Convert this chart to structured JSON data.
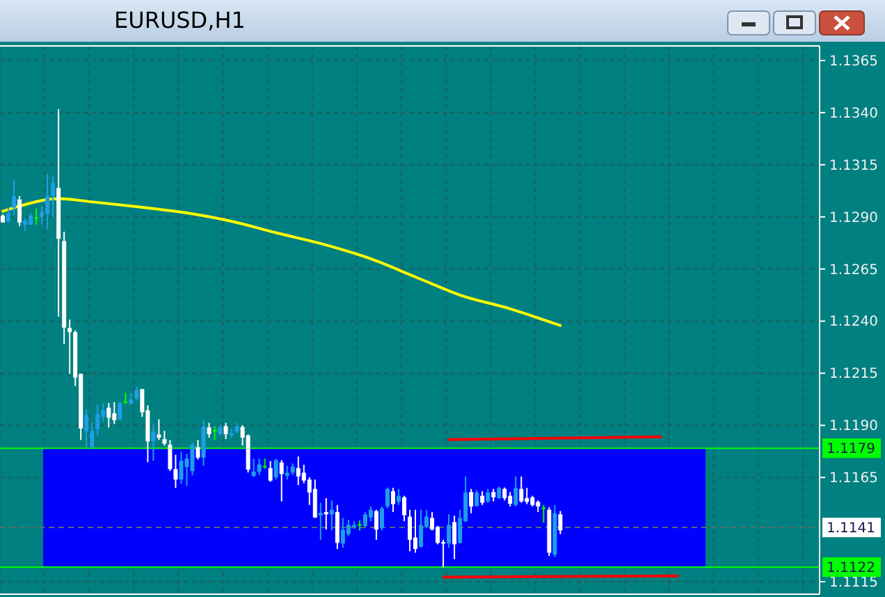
{
  "chart_data": {
    "type": "candlestick",
    "title": "EURUSD,H1",
    "categories": [
      null,
      null,
      null,
      null,
      null,
      null,
      null,
      null,
      null,
      null,
      null,
      null,
      null,
      null,
      null,
      null,
      null,
      null,
      null,
      null,
      null,
      null,
      null,
      null,
      null,
      null,
      null,
      null,
      null,
      null,
      null,
      null,
      null,
      null,
      null,
      null,
      null,
      null,
      null,
      null,
      null,
      null,
      null,
      null,
      null,
      null,
      null,
      null,
      null,
      null,
      null,
      null,
      null,
      null,
      null,
      null,
      null,
      null,
      null,
      null,
      null,
      null,
      null,
      null,
      null,
      null,
      null,
      null,
      null,
      null,
      null,
      null,
      null,
      null,
      null,
      null,
      null,
      null,
      null,
      null,
      null,
      null,
      null,
      null,
      null,
      null,
      null,
      null,
      null,
      null,
      null,
      null,
      null,
      null,
      null,
      null,
      null,
      null,
      null,
      null,
      null,
      null,
      null,
      null,
      null,
      null,
      null,
      null,
      null,
      null,
      null,
      null,
      null,
      null,
      null,
      null,
      null,
      null,
      null,
      null,
      null,
      null,
      null,
      null,
      null,
      null,
      null,
      null,
      null,
      null,
      null,
      null,
      null,
      null,
      null,
      null,
      null,
      null,
      null,
      null,
      null,
      null,
      null,
      null,
      null,
      null,
      null
    ],
    "ohlc": [
      [
        1.12906,
        1.12913,
        1.12873,
        1.12873
      ],
      [
        1.12877,
        1.12944,
        1.12873,
        1.12917
      ],
      [
        1.12944,
        1.13079,
        1.12906,
        1.13
      ],
      [
        1.12984,
        1.13,
        1.12855,
        1.12873
      ],
      [
        1.12862,
        1.12895,
        1.12833,
        1.1288
      ],
      [
        1.12862,
        1.12917,
        1.12862,
        1.12906
      ],
      [
        1.12895,
        1.1294,
        1.12862,
        1.12895
      ],
      [
        1.129,
        1.12951,
        1.12862,
        1.12924
      ],
      [
        1.12913,
        1.13106,
        1.1284,
        1.13
      ],
      [
        1.13,
        1.13095,
        1.12895,
        1.13062
      ],
      [
        1.13039,
        1.13417,
        1.12422,
        1.12795
      ],
      [
        1.12784,
        1.12829,
        1.12291,
        1.12369
      ],
      [
        1.12367,
        1.12407,
        1.12147,
        1.12347
      ],
      [
        1.12347,
        1.12356,
        1.12089,
        1.12129
      ],
      [
        1.12147,
        1.12147,
        1.1183,
        1.11885
      ],
      [
        1.1187,
        1.11974,
        1.11796,
        1.11947
      ],
      [
        1.11796,
        1.11914,
        1.11785,
        1.11874
      ],
      [
        1.11881,
        1.12001,
        1.11852,
        1.11954
      ],
      [
        1.11941,
        1.12007,
        1.11918,
        1.11974
      ],
      [
        1.11985,
        1.12007,
        1.1189,
        1.11936
      ],
      [
        1.11958,
        1.12012,
        1.11907,
        1.11925
      ],
      [
        1.11929,
        1.12012,
        1.11925,
        1.12007
      ],
      [
        1.12012,
        1.12056,
        1.12001,
        1.12012
      ],
      [
        1.12003,
        1.12056,
        1.12001,
        1.12025
      ],
      [
        1.12029,
        1.12085,
        1.12018,
        1.12069
      ],
      [
        1.12074,
        1.12074,
        1.11941,
        1.11963
      ],
      [
        1.11972,
        1.11996,
        1.11723,
        1.11823
      ],
      [
        1.11823,
        1.11907,
        1.1173,
        1.1187
      ],
      [
        1.11856,
        1.11929,
        1.1183,
        1.11841
      ],
      [
        1.11834,
        1.11874,
        1.11803,
        1.11812
      ],
      [
        1.11807,
        1.1183,
        1.11681,
        1.1169
      ],
      [
        1.1169,
        1.11759,
        1.116,
        1.1164
      ],
      [
        1.1164,
        1.11774,
        1.1162,
        1.1173
      ],
      [
        1.117,
        1.11763,
        1.1161,
        1.11741
      ],
      [
        1.1168,
        1.11818,
        1.1166,
        1.11807
      ],
      [
        1.11796,
        1.1183,
        1.11736,
        1.11745
      ],
      [
        1.11745,
        1.11925,
        1.11707,
        1.11896
      ],
      [
        1.1189,
        1.11912,
        1.11841,
        1.11858
      ],
      [
        1.11874,
        1.11896,
        1.1183,
        1.11874
      ],
      [
        1.11858,
        1.11903,
        1.11852,
        1.1189
      ],
      [
        1.11896,
        1.11912,
        1.11834,
        1.11858
      ],
      [
        1.11852,
        1.11885,
        1.11841,
        1.11863
      ],
      [
        1.1187,
        1.11912,
        1.11863,
        1.11896
      ],
      [
        1.11892,
        1.11901,
        1.11803,
        1.11841
      ],
      [
        1.11852,
        1.11856,
        1.11674,
        1.11688
      ],
      [
        1.11658,
        1.1174,
        1.11651,
        1.11678
      ],
      [
        1.11678,
        1.1174,
        1.11662,
        1.11713
      ],
      [
        1.11702,
        1.1174,
        1.11691,
        1.11702
      ],
      [
        1.11695,
        1.11729,
        1.11629,
        1.11635
      ],
      [
        1.11651,
        1.1174,
        1.1164,
        1.11733
      ],
      [
        1.11722,
        1.11733,
        1.11535,
        1.11666
      ],
      [
        1.11658,
        1.11706,
        1.1164,
        1.11673
      ],
      [
        1.11673,
        1.11717,
        1.11662,
        1.11702
      ],
      [
        1.11695,
        1.11751,
        1.11613,
        1.11655
      ],
      [
        1.11673,
        1.11711,
        1.11622,
        1.11635
      ],
      [
        1.1164,
        1.11651,
        1.11518,
        1.11578
      ],
      [
        1.11595,
        1.1164,
        1.11456,
        1.11458
      ],
      [
        1.11467,
        1.11529,
        1.11351,
        1.1148
      ],
      [
        1.11484,
        1.11551,
        1.114,
        1.11473
      ],
      [
        1.11473,
        1.1154,
        1.11396,
        1.11495
      ],
      [
        1.11484,
        1.11518,
        1.11307,
        1.11336
      ],
      [
        1.11333,
        1.11456,
        1.11313,
        1.114
      ],
      [
        1.11378,
        1.11447,
        1.11369,
        1.11422
      ],
      [
        1.11413,
        1.1144,
        1.11404,
        1.11422
      ],
      [
        1.11422,
        1.11444,
        1.11396,
        1.11422
      ],
      [
        1.11418,
        1.11484,
        1.11413,
        1.11473
      ],
      [
        1.11458,
        1.11511,
        1.1144,
        1.11495
      ],
      [
        1.11489,
        1.11495,
        1.11351,
        1.114
      ],
      [
        1.11407,
        1.11511,
        1.11396,
        1.11502
      ],
      [
        1.11511,
        1.11602,
        1.11502,
        1.11595
      ],
      [
        1.11584,
        1.116,
        1.11484,
        1.11522
      ],
      [
        1.11533,
        1.11595,
        1.11518,
        1.11562
      ],
      [
        1.11555,
        1.11562,
        1.1144,
        1.11469
      ],
      [
        1.11462,
        1.11495,
        1.11296,
        1.11351
      ],
      [
        1.11362,
        1.11495,
        1.11289,
        1.11307
      ],
      [
        1.11318,
        1.11495,
        1.11313,
        1.11422
      ],
      [
        1.11413,
        1.11495,
        1.11407,
        1.11462
      ],
      [
        1.11456,
        1.11484,
        1.11396,
        1.114
      ],
      [
        1.11413,
        1.11418,
        1.11329,
        1.11336
      ],
      [
        1.1134,
        1.11351,
        1.11218,
        1.11333
      ],
      [
        1.11333,
        1.11473,
        1.11313,
        1.11422
      ],
      [
        1.11436,
        1.11467,
        1.11258,
        1.11329
      ],
      [
        1.11336,
        1.11495,
        1.11333,
        1.11456
      ],
      [
        1.1144,
        1.11655,
        1.11436,
        1.11578
      ],
      [
        1.1158,
        1.11595,
        1.11478,
        1.11511
      ],
      [
        1.11513,
        1.11589,
        1.11511,
        1.11578
      ],
      [
        1.11562,
        1.11584,
        1.11518,
        1.11529
      ],
      [
        1.11535,
        1.11595,
        1.11529,
        1.11578
      ],
      [
        1.1158,
        1.11595,
        1.11535,
        1.11555
      ],
      [
        1.11551,
        1.11606,
        1.11547,
        1.116
      ],
      [
        1.11595,
        1.11602,
        1.1154,
        1.11551
      ],
      [
        1.11562,
        1.1158,
        1.11511,
        1.11524
      ],
      [
        1.11518,
        1.11655,
        1.11511,
        1.116
      ],
      [
        1.11595,
        1.11655,
        1.11529,
        1.11535
      ],
      [
        1.11551,
        1.116,
        1.11522,
        1.11533
      ],
      [
        1.11555,
        1.11562,
        1.11511,
        1.11518
      ],
      [
        1.11533,
        1.1154,
        1.11484,
        1.11511
      ],
      [
        1.11502,
        1.11518,
        1.11433,
        1.11502
      ],
      [
        1.11495,
        1.11507,
        1.11273,
        1.11289
      ],
      [
        1.1128,
        1.11518,
        1.11269,
        1.11478
      ],
      [
        1.11473,
        1.11489,
        1.11378,
        1.11396
      ],
      null,
      null,
      null,
      null,
      null,
      null,
      null,
      null,
      null,
      null,
      null,
      null,
      null,
      null,
      null,
      null,
      null,
      null,
      null,
      null,
      null,
      null,
      null,
      null,
      null,
      null,
      null,
      null,
      null,
      null,
      null,
      null,
      null,
      null,
      null,
      null,
      null,
      null,
      null,
      null,
      null,
      null,
      null,
      null,
      null,
      null
    ],
    "colors": [
      "#ffffff",
      "#1e9ee6",
      "#1e9ee6",
      "#ffffff",
      "#1e9ee6",
      "#1e9ee6",
      "#00ff00",
      "#1e9ee6",
      "#1e9ee6",
      "#1e9ee6",
      "#ffffff",
      "#ffffff",
      "#ffffff",
      "#ffffff",
      "#ffffff",
      "#1e9ee6",
      "#1e9ee6",
      "#1e9ee6",
      "#1e9ee6",
      "#ffffff",
      "#ffffff",
      "#1e9ee6",
      "#00ff00",
      "#1e9ee6",
      "#1e9ee6",
      "#ffffff",
      "#ffffff",
      "#1e9ee6",
      "#ffffff",
      "#ffffff",
      "#ffffff",
      "#ffffff",
      "#1e9ee6",
      "#1e9ee6",
      "#1e9ee6",
      "#ffffff",
      "#1e9ee6",
      "#ffffff",
      "#00ff00",
      "#1e9ee6",
      "#ffffff",
      "#1e9ee6",
      "#1e9ee6",
      "#ffffff",
      "#ffffff",
      "#1e9ee6",
      "#1e9ee6",
      "#00ff00",
      "#ffffff",
      "#1e9ee6",
      "#ffffff",
      "#1e9ee6",
      "#1e9ee6",
      "#ffffff",
      "#ffffff",
      "#ffffff",
      "#ffffff",
      "#1e9ee6",
      "#ffffff",
      "#1e9ee6",
      "#ffffff",
      "#1e9ee6",
      "#1e9ee6",
      "#1e9ee6",
      "#00ff00",
      "#1e9ee6",
      "#1e9ee6",
      "#ffffff",
      "#1e9ee6",
      "#1e9ee6",
      "#ffffff",
      "#1e9ee6",
      "#ffffff",
      "#ffffff",
      "#ffffff",
      "#1e9ee6",
      "#1e9ee6",
      "#ffffff",
      "#ffffff",
      "#ffffff",
      "#1e9ee6",
      "#ffffff",
      "#1e9ee6",
      "#1e9ee6",
      "#ffffff",
      "#1e9ee6",
      "#ffffff",
      "#1e9ee6",
      "#ffffff",
      "#1e9ee6",
      "#ffffff",
      "#ffffff",
      "#1e9ee6",
      "#ffffff",
      "#ffffff",
      "#ffffff",
      "#ffffff",
      "#00ff00",
      "#ffffff",
      "#1e9ee6",
      "#ffffff",
      null,
      null,
      null,
      null,
      null,
      null,
      null,
      null,
      null,
      null,
      null,
      null,
      null,
      null,
      null,
      null,
      null,
      null,
      null,
      null,
      null,
      null,
      null,
      null,
      null,
      null,
      null,
      null,
      null,
      null,
      null,
      null,
      null,
      null,
      null,
      null,
      null,
      null,
      null,
      null,
      null,
      null,
      null,
      null,
      null,
      null
    ],
    "series": [
      {
        "type": "line",
        "color": "#ffff00",
        "values": [
          1.12927,
          null,
          null,
          1.12952,
          null,
          null,
          null,
          null,
          null,
          null,
          1.12987,
          null,
          null,
          null,
          null,
          null,
          1.12972,
          null,
          null,
          null,
          null,
          null,
          null,
          null,
          1.12949,
          null,
          null,
          null,
          null,
          null,
          null,
          null,
          null,
          1.12919,
          null,
          null,
          null,
          null,
          null,
          null,
          null,
          1.12879,
          null,
          null,
          null,
          null,
          null,
          null,
          null,
          1.12824,
          null,
          null,
          null,
          null,
          null,
          null,
          null,
          null,
          1.12765,
          null,
          null,
          null,
          null,
          null,
          null,
          null,
          1.12699,
          null,
          null,
          null,
          null,
          null,
          null,
          null,
          1.12612,
          null,
          null,
          null,
          null,
          null,
          null,
          null,
          1.12525,
          null,
          null,
          null,
          null,
          null,
          null,
          null,
          null,
          1.12459,
          null,
          null,
          null,
          null,
          null,
          null,
          null,
          null,
          1.12379,
          null,
          null,
          null,
          null,
          null,
          null,
          null,
          null,
          null,
          null,
          null,
          null,
          null,
          null,
          null,
          null,
          null,
          null,
          null,
          null,
          null,
          null,
          null,
          null,
          null,
          null,
          null,
          null,
          null,
          null,
          null,
          null,
          null,
          null,
          null,
          null,
          null,
          null,
          null,
          null,
          null,
          null,
          null,
          null,
          null,
          null
        ]
      },
      {
        "type": "line",
        "color": "#ff0000",
        "values": [
          null,
          null,
          null,
          null,
          null,
          null,
          null,
          null,
          null,
          null,
          null,
          null,
          null,
          null,
          null,
          null,
          null,
          null,
          null,
          null,
          null,
          null,
          null,
          null,
          null,
          null,
          null,
          null,
          null,
          null,
          null,
          null,
          null,
          null,
          null,
          null,
          null,
          null,
          null,
          null,
          null,
          null,
          null,
          null,
          null,
          null,
          null,
          null,
          null,
          null,
          null,
          null,
          null,
          null,
          null,
          null,
          null,
          null,
          null,
          null,
          null,
          null,
          null,
          null,
          null,
          null,
          null,
          null,
          null,
          null,
          null,
          null,
          null,
          null,
          null,
          null,
          null,
          null,
          null,
          null,
          1.11832,
          null,
          null,
          null,
          null,
          null,
          null,
          null,
          null,
          null,
          null,
          null,
          null,
          null,
          null,
          null,
          null,
          null,
          null,
          null,
          null,
          null,
          null,
          null,
          null,
          null,
          null,
          null,
          null,
          null,
          null,
          null,
          null,
          null,
          null,
          null,
          null,
          null,
          1.11845,
          null,
          null,
          null,
          null,
          null,
          null,
          null,
          null,
          null,
          null,
          null,
          null,
          null,
          null,
          null,
          null,
          null,
          null,
          null,
          null,
          null,
          null,
          null,
          null,
          null,
          null,
          null,
          null
        ]
      },
      {
        "type": "line",
        "color": "#ff0000",
        "values": [
          null,
          null,
          null,
          null,
          null,
          null,
          null,
          null,
          null,
          null,
          null,
          null,
          null,
          null,
          null,
          null,
          null,
          null,
          null,
          null,
          null,
          null,
          null,
          null,
          null,
          null,
          null,
          null,
          null,
          null,
          null,
          null,
          null,
          null,
          null,
          null,
          null,
          null,
          null,
          null,
          null,
          null,
          null,
          null,
          null,
          null,
          null,
          null,
          null,
          null,
          null,
          null,
          null,
          null,
          null,
          null,
          null,
          null,
          null,
          null,
          null,
          null,
          null,
          null,
          null,
          null,
          null,
          null,
          null,
          null,
          null,
          null,
          null,
          null,
          null,
          null,
          null,
          null,
          null,
          1.11172,
          null,
          null,
          null,
          null,
          null,
          null,
          null,
          null,
          null,
          null,
          null,
          null,
          null,
          null,
          null,
          null,
          null,
          null,
          null,
          null,
          null,
          null,
          null,
          null,
          null,
          null,
          null,
          null,
          null,
          null,
          null,
          null,
          null,
          null,
          null,
          null,
          null,
          null,
          null,
          null,
          null,
          1.11178,
          null,
          null,
          null,
          null,
          null,
          null,
          null,
          null,
          null,
          null,
          null,
          null,
          null,
          null,
          null,
          null,
          null,
          null,
          null,
          null,
          null,
          null,
          null,
          null,
          null
        ]
      }
    ],
    "ylim": [
      1.1109,
      1.1372
    ],
    "yticks": [
      1.1115,
      1.1165,
      {
        "value": 1.119,
        "label": "1.1190"
      },
      1.1215,
      {
        "value": 1.124,
        "label": "1.1240"
      },
      1.1265,
      {
        "value": 1.129,
        "label": "1.1290"
      },
      1.1315,
      {
        "value": 1.134,
        "label": "1.1340"
      },
      1.1365
    ],
    "bands": [
      {
        "axis": "y",
        "from": 1.1122,
        "to": 1.1179,
        "color": "#0000ff"
      }
    ],
    "ref_lines": [
      {
        "axis": "y",
        "value": 1.1179,
        "label": "1.1179",
        "color": "#00ff00"
      },
      {
        "axis": "y",
        "value": 1.1122,
        "label": "1.1122",
        "color": "#00ff00"
      },
      {
        "axis": "y",
        "value": 1.1141,
        "label": "1.1141",
        "color": "#5a6a6a",
        "line_style": "dashed"
      }
    ],
    "grid": true,
    "tick_labels": "y"
  }
}
